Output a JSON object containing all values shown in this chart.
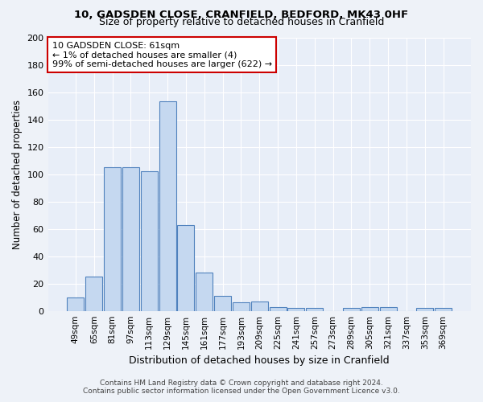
{
  "title1": "10, GADSDEN CLOSE, CRANFIELD, BEDFORD, MK43 0HF",
  "title2": "Size of property relative to detached houses in Cranfield",
  "xlabel": "Distribution of detached houses by size in Cranfield",
  "ylabel": "Number of detached properties",
  "categories": [
    "49sqm",
    "65sqm",
    "81sqm",
    "97sqm",
    "113sqm",
    "129sqm",
    "145sqm",
    "161sqm",
    "177sqm",
    "193sqm",
    "209sqm",
    "225sqm",
    "241sqm",
    "257sqm",
    "273sqm",
    "289sqm",
    "305sqm",
    "321sqm",
    "337sqm",
    "353sqm",
    "369sqm"
  ],
  "values": [
    10,
    25,
    105,
    105,
    102,
    153,
    63,
    28,
    11,
    6,
    7,
    3,
    2,
    2,
    0,
    2,
    3,
    3,
    0,
    2,
    2
  ],
  "bar_color": "#c5d8f0",
  "bar_edge_color": "#4f81bd",
  "annotation_line1": "10 GADSDEN CLOSE: 61sqm",
  "annotation_line2": "← 1% of detached houses are smaller (4)",
  "annotation_line3": "99% of semi-detached houses are larger (622) →",
  "annotation_box_color": "#ffffff",
  "annotation_box_edge": "#cc0000",
  "bg_color": "#e8eef8",
  "fig_bg_color": "#eef2f8",
  "ylim": [
    0,
    200
  ],
  "yticks": [
    0,
    20,
    40,
    60,
    80,
    100,
    120,
    140,
    160,
    180,
    200
  ],
  "footer1": "Contains HM Land Registry data © Crown copyright and database right 2024.",
  "footer2": "Contains public sector information licensed under the Open Government Licence v3.0."
}
